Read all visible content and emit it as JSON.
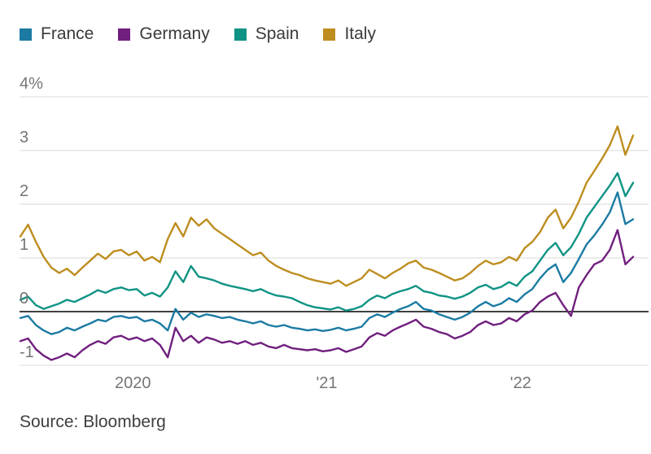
{
  "source": {
    "text": "Source: Bloomberg"
  },
  "chart_data": {
    "type": "line",
    "title": "",
    "xlabel": "",
    "ylabel": "",
    "legend_position": "top-left",
    "grid": true,
    "xlim": [
      2019.42,
      2022.58
    ],
    "ylim": [
      -1.2,
      4.3
    ],
    "yticks": [
      {
        "value": 4,
        "label": "4%"
      },
      {
        "value": 3,
        "label": "3"
      },
      {
        "value": 2,
        "label": "2"
      },
      {
        "value": 1,
        "label": "1"
      },
      {
        "value": 0,
        "label": "0"
      },
      {
        "value": -1,
        "label": "-1"
      }
    ],
    "xticks": [
      {
        "value": 2020,
        "label": "2020"
      },
      {
        "value": 2021,
        "label": "'21"
      },
      {
        "value": 2022,
        "label": "'22"
      }
    ],
    "x": [
      2019.42,
      2019.46,
      2019.5,
      2019.54,
      2019.58,
      2019.62,
      2019.66,
      2019.7,
      2019.74,
      2019.78,
      2019.82,
      2019.86,
      2019.9,
      2019.94,
      2019.98,
      2020.02,
      2020.06,
      2020.1,
      2020.14,
      2020.18,
      2020.22,
      2020.26,
      2020.3,
      2020.34,
      2020.38,
      2020.42,
      2020.46,
      2020.5,
      2020.54,
      2020.58,
      2020.62,
      2020.66,
      2020.7,
      2020.74,
      2020.78,
      2020.82,
      2020.86,
      2020.9,
      2020.94,
      2020.98,
      2021.02,
      2021.06,
      2021.1,
      2021.14,
      2021.18,
      2021.22,
      2021.26,
      2021.3,
      2021.34,
      2021.38,
      2021.42,
      2021.46,
      2021.5,
      2021.54,
      2021.58,
      2021.62,
      2021.66,
      2021.7,
      2021.74,
      2021.78,
      2021.82,
      2021.86,
      2021.9,
      2021.94,
      2021.98,
      2022.02,
      2022.06,
      2022.1,
      2022.14,
      2022.18,
      2022.22,
      2022.26,
      2022.3,
      2022.34,
      2022.38,
      2022.42,
      2022.46,
      2022.5,
      2022.54,
      2022.58
    ],
    "series": [
      {
        "name": "France",
        "color": "#1b7ba3",
        "values": [
          -0.12,
          -0.08,
          -0.25,
          -0.35,
          -0.42,
          -0.38,
          -0.3,
          -0.35,
          -0.28,
          -0.22,
          -0.15,
          -0.18,
          -0.1,
          -0.08,
          -0.12,
          -0.1,
          -0.18,
          -0.15,
          -0.22,
          -0.35,
          0.05,
          -0.15,
          -0.02,
          -0.1,
          -0.05,
          -0.08,
          -0.12,
          -0.1,
          -0.15,
          -0.18,
          -0.22,
          -0.18,
          -0.25,
          -0.28,
          -0.25,
          -0.3,
          -0.32,
          -0.35,
          -0.33,
          -0.36,
          -0.34,
          -0.3,
          -0.35,
          -0.32,
          -0.28,
          -0.12,
          -0.05,
          -0.1,
          -0.02,
          0.05,
          0.1,
          0.18,
          0.05,
          0.02,
          -0.05,
          -0.1,
          -0.15,
          -0.1,
          -0.02,
          0.1,
          0.18,
          0.1,
          0.15,
          0.25,
          0.18,
          0.32,
          0.42,
          0.62,
          0.78,
          0.88,
          0.55,
          0.72,
          0.98,
          1.25,
          1.42,
          1.62,
          1.85,
          2.22,
          1.63,
          1.72
        ]
      },
      {
        "name": "Germany",
        "color": "#701f7e",
        "values": [
          -0.55,
          -0.5,
          -0.7,
          -0.82,
          -0.9,
          -0.85,
          -0.78,
          -0.85,
          -0.72,
          -0.62,
          -0.55,
          -0.6,
          -0.48,
          -0.45,
          -0.52,
          -0.48,
          -0.55,
          -0.5,
          -0.62,
          -0.85,
          -0.3,
          -0.55,
          -0.45,
          -0.58,
          -0.48,
          -0.52,
          -0.58,
          -0.55,
          -0.6,
          -0.55,
          -0.62,
          -0.58,
          -0.65,
          -0.68,
          -0.62,
          -0.68,
          -0.7,
          -0.72,
          -0.7,
          -0.74,
          -0.72,
          -0.68,
          -0.75,
          -0.7,
          -0.65,
          -0.48,
          -0.4,
          -0.45,
          -0.35,
          -0.28,
          -0.22,
          -0.15,
          -0.28,
          -0.32,
          -0.38,
          -0.42,
          -0.5,
          -0.45,
          -0.38,
          -0.25,
          -0.18,
          -0.25,
          -0.22,
          -0.12,
          -0.18,
          -0.05,
          0.02,
          0.18,
          0.28,
          0.35,
          0.12,
          -0.08,
          0.45,
          0.68,
          0.88,
          0.95,
          1.15,
          1.52,
          0.88,
          1.02
        ]
      },
      {
        "name": "Spain",
        "color": "#0f9384",
        "values": [
          0.22,
          0.28,
          0.12,
          0.05,
          0.1,
          0.15,
          0.22,
          0.18,
          0.25,
          0.32,
          0.4,
          0.35,
          0.42,
          0.45,
          0.4,
          0.42,
          0.3,
          0.35,
          0.28,
          0.45,
          0.75,
          0.55,
          0.85,
          0.65,
          0.62,
          0.58,
          0.52,
          0.48,
          0.45,
          0.42,
          0.38,
          0.42,
          0.35,
          0.3,
          0.28,
          0.25,
          0.18,
          0.12,
          0.08,
          0.06,
          0.04,
          0.08,
          0.02,
          0.05,
          0.1,
          0.22,
          0.3,
          0.25,
          0.33,
          0.38,
          0.42,
          0.48,
          0.38,
          0.35,
          0.3,
          0.28,
          0.24,
          0.28,
          0.35,
          0.45,
          0.5,
          0.42,
          0.46,
          0.55,
          0.48,
          0.65,
          0.75,
          0.95,
          1.15,
          1.28,
          1.05,
          1.2,
          1.45,
          1.75,
          1.95,
          2.15,
          2.35,
          2.58,
          2.15,
          2.4
        ]
      },
      {
        "name": "Italy",
        "color": "#bd8d1f",
        "values": [
          1.4,
          1.62,
          1.3,
          1.02,
          0.82,
          0.72,
          0.8,
          0.68,
          0.82,
          0.95,
          1.08,
          0.98,
          1.12,
          1.15,
          1.05,
          1.12,
          0.95,
          1.02,
          0.92,
          1.35,
          1.65,
          1.4,
          1.75,
          1.6,
          1.72,
          1.55,
          1.45,
          1.35,
          1.25,
          1.15,
          1.05,
          1.1,
          0.95,
          0.85,
          0.78,
          0.72,
          0.68,
          0.62,
          0.58,
          0.55,
          0.52,
          0.58,
          0.48,
          0.55,
          0.62,
          0.78,
          0.7,
          0.62,
          0.72,
          0.8,
          0.9,
          0.95,
          0.82,
          0.78,
          0.72,
          0.65,
          0.58,
          0.62,
          0.72,
          0.85,
          0.95,
          0.88,
          0.92,
          1.02,
          0.95,
          1.18,
          1.3,
          1.48,
          1.75,
          1.9,
          1.55,
          1.75,
          2.05,
          2.4,
          2.62,
          2.85,
          3.1,
          3.45,
          2.92,
          3.28
        ]
      }
    ]
  }
}
